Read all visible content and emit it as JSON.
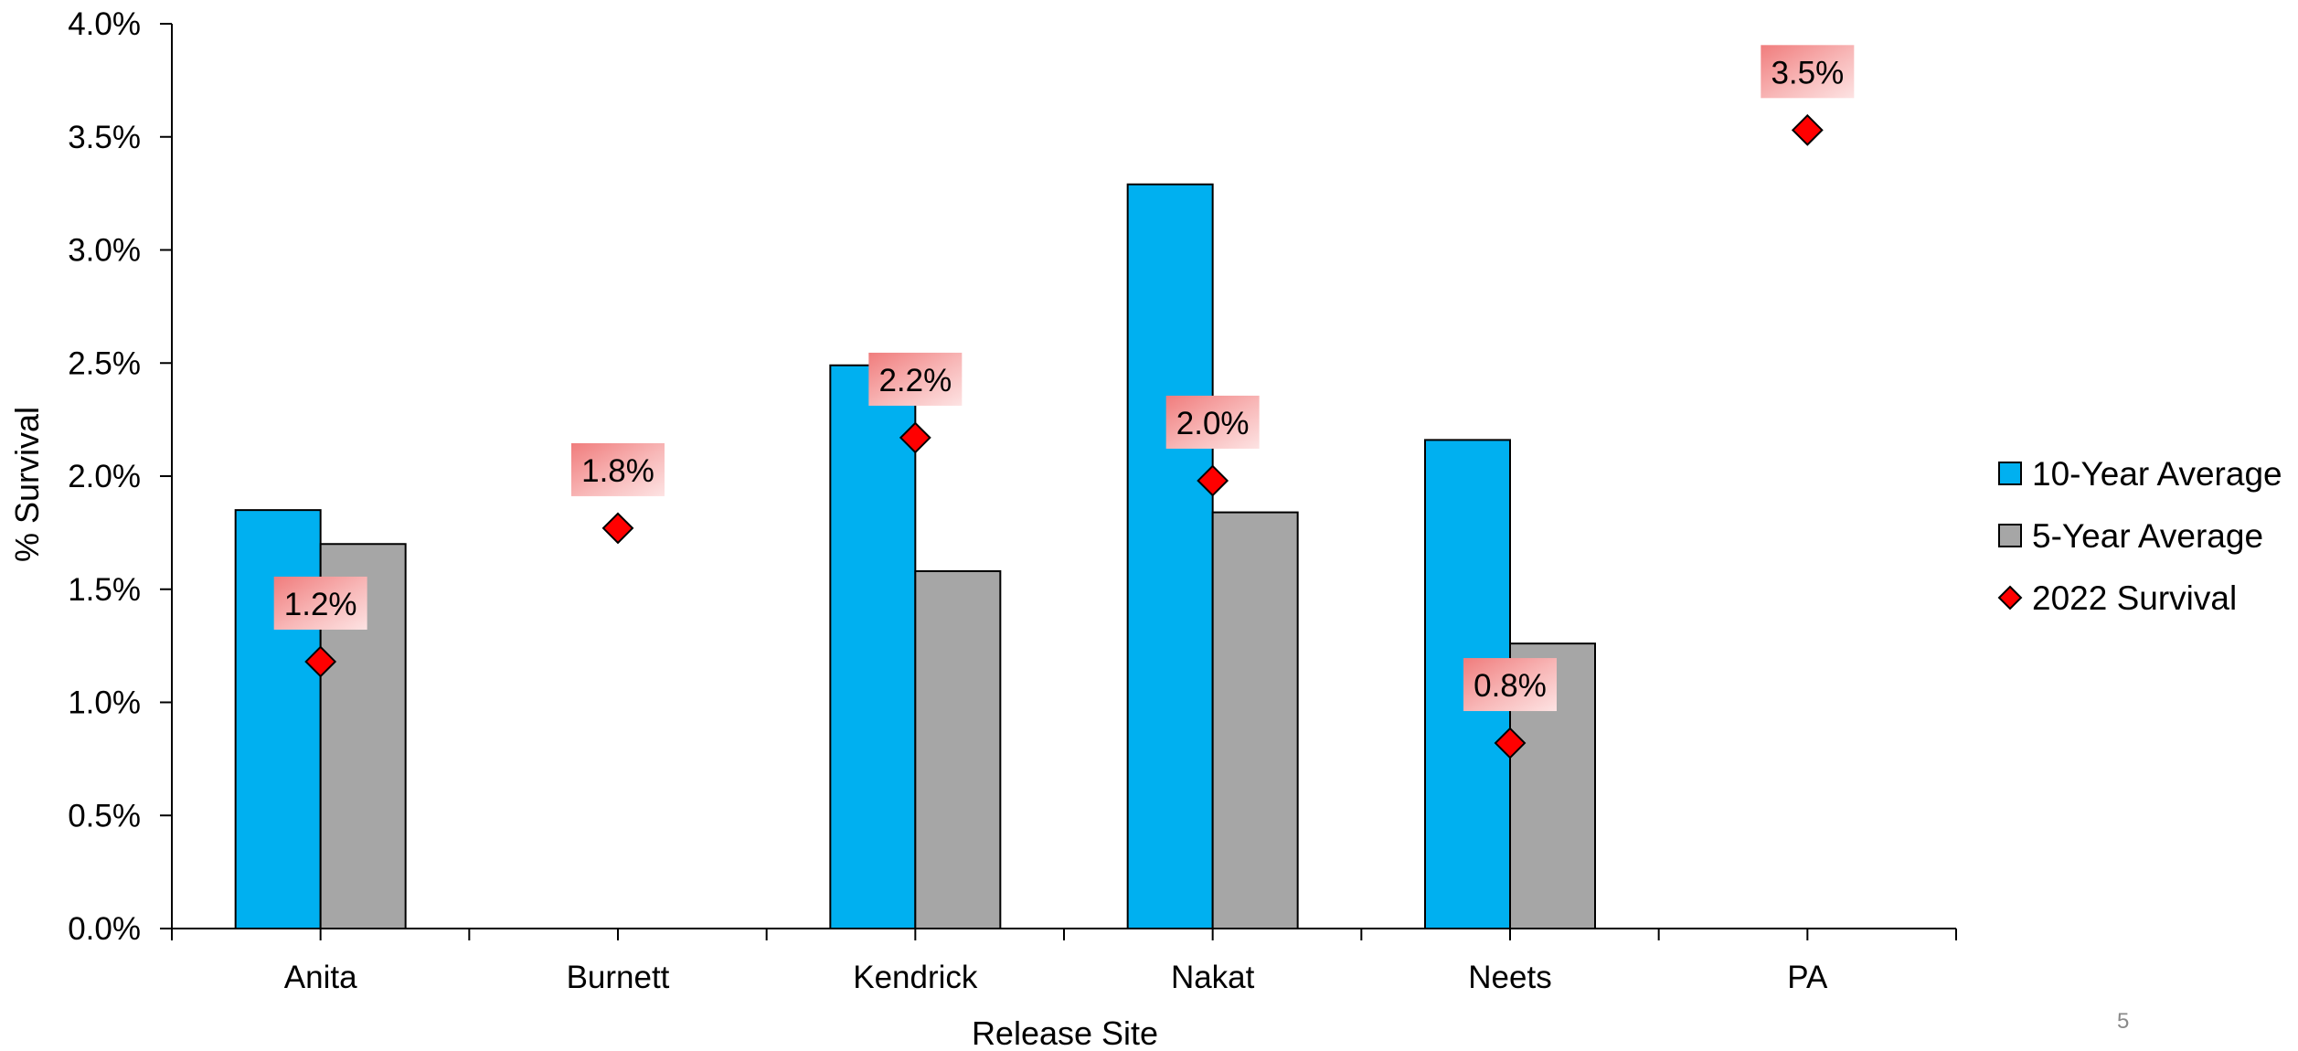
{
  "page_number": "5",
  "chart_data": {
    "type": "bar",
    "title": "",
    "xlabel": "Release Site",
    "ylabel": "% Survival",
    "categories": [
      "Anita",
      "Burnett",
      "Kendrick",
      "Nakat",
      "Neets",
      "PA"
    ],
    "ylim": [
      0,
      4.0
    ],
    "y_ticks": [
      0.0,
      0.5,
      1.0,
      1.5,
      2.0,
      2.5,
      3.0,
      3.5,
      4.0
    ],
    "y_tick_labels": [
      "0.0%",
      "0.5%",
      "1.0%",
      "1.5%",
      "2.0%",
      "2.5%",
      "3.0%",
      "3.5%",
      "4.0%"
    ],
    "grid": false,
    "legend_position": "right",
    "series": [
      {
        "name": "10-Year Average",
        "kind": "bar",
        "color": "#00B0F0",
        "values": [
          1.85,
          null,
          2.49,
          3.29,
          2.16,
          null
        ]
      },
      {
        "name": "5-Year Average",
        "kind": "bar",
        "color": "#A6A6A6",
        "values": [
          1.7,
          null,
          1.58,
          1.84,
          1.26,
          null
        ]
      },
      {
        "name": "2022 Survival",
        "kind": "marker",
        "marker": "diamond",
        "color": "#FF0000",
        "values": [
          1.18,
          1.77,
          2.17,
          1.98,
          0.82,
          3.53
        ],
        "labels": [
          "1.2%",
          "1.8%",
          "2.2%",
          "2.0%",
          "0.8%",
          "3.5%"
        ]
      }
    ]
  }
}
